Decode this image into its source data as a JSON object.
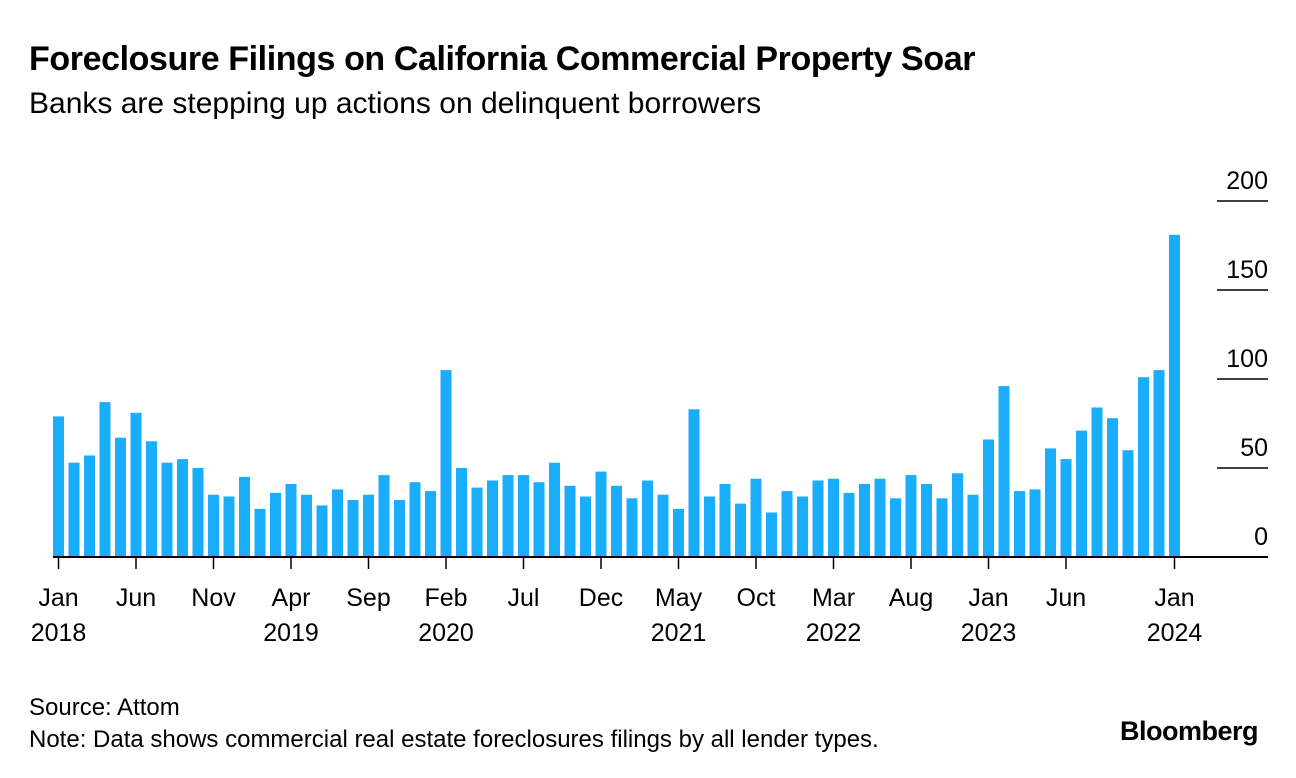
{
  "header": {
    "title": "Foreclosure Filings on California Commercial Property Soar",
    "subtitle": "Banks are stepping up actions on delinquent borrowers"
  },
  "footer": {
    "source": "Source: Attom",
    "note": "Note: Data shows commercial real estate foreclosures filings by all lender types.",
    "logo": "Bloomberg"
  },
  "chart_data": {
    "type": "bar",
    "title": "Foreclosure Filings on California Commercial Property Soar",
    "subtitle": "Banks are stepping up actions on delinquent borrowers",
    "xlabel": "",
    "ylabel": "",
    "ylim": [
      0,
      200
    ],
    "yticks": [
      0,
      50,
      100,
      150,
      200
    ],
    "grid": "ticks-only",
    "bar_color": "#1aadfb",
    "x_tick_labels": [
      {
        "index": 0,
        "month": "Jan",
        "year": "2018"
      },
      {
        "index": 5,
        "month": "Jun",
        "year": ""
      },
      {
        "index": 10,
        "month": "Nov",
        "year": ""
      },
      {
        "index": 15,
        "month": "Apr",
        "year": "2019"
      },
      {
        "index": 20,
        "month": "Sep",
        "year": ""
      },
      {
        "index": 25,
        "month": "Feb",
        "year": "2020"
      },
      {
        "index": 30,
        "month": "Jul",
        "year": ""
      },
      {
        "index": 35,
        "month": "Dec",
        "year": ""
      },
      {
        "index": 40,
        "month": "May",
        "year": "2021"
      },
      {
        "index": 45,
        "month": "Oct",
        "year": ""
      },
      {
        "index": 50,
        "month": "Mar",
        "year": "2022"
      },
      {
        "index": 55,
        "month": "Aug",
        "year": ""
      },
      {
        "index": 60,
        "month": "Jan",
        "year": "2023"
      },
      {
        "index": 65,
        "month": "Jun",
        "year": ""
      },
      {
        "index": 72,
        "month": "Jan",
        "year": "2024"
      }
    ],
    "categories": [
      "2018-01",
      "2018-02",
      "2018-03",
      "2018-04",
      "2018-05",
      "2018-06",
      "2018-07",
      "2018-08",
      "2018-09",
      "2018-10",
      "2018-11",
      "2018-12",
      "2019-01",
      "2019-02",
      "2019-03",
      "2019-04",
      "2019-05",
      "2019-06",
      "2019-07",
      "2019-08",
      "2019-09",
      "2019-10",
      "2019-11",
      "2019-12",
      "2020-01",
      "2020-02",
      "2020-03",
      "2020-04",
      "2020-05",
      "2020-06",
      "2020-07",
      "2020-08",
      "2020-09",
      "2020-10",
      "2020-11",
      "2020-12",
      "2021-01",
      "2021-02",
      "2021-03",
      "2021-04",
      "2021-05",
      "2021-06",
      "2021-07",
      "2021-08",
      "2021-09",
      "2021-10",
      "2021-11",
      "2021-12",
      "2022-01",
      "2022-02",
      "2022-03",
      "2022-04",
      "2022-05",
      "2022-06",
      "2022-07",
      "2022-08",
      "2022-09",
      "2022-10",
      "2022-11",
      "2022-12",
      "2023-01",
      "2023-02",
      "2023-03",
      "2023-04",
      "2023-05",
      "2023-06",
      "2023-07",
      "2023-08",
      "2023-09",
      "2023-10",
      "2023-11",
      "2023-12",
      "2024-01"
    ],
    "values": [
      79,
      53,
      57,
      87,
      67,
      81,
      65,
      53,
      55,
      50,
      35,
      34,
      45,
      27,
      36,
      41,
      35,
      29,
      38,
      32,
      35,
      46,
      32,
      42,
      37,
      105,
      50,
      39,
      43,
      46,
      46,
      42,
      53,
      40,
      34,
      48,
      40,
      33,
      43,
      35,
      27,
      83,
      34,
      41,
      30,
      44,
      25,
      37,
      34,
      43,
      44,
      36,
      41,
      44,
      33,
      46,
      41,
      33,
      47,
      35,
      66,
      96,
      37,
      38,
      61,
      55,
      71,
      84,
      78,
      60,
      101,
      105,
      181
    ]
  }
}
